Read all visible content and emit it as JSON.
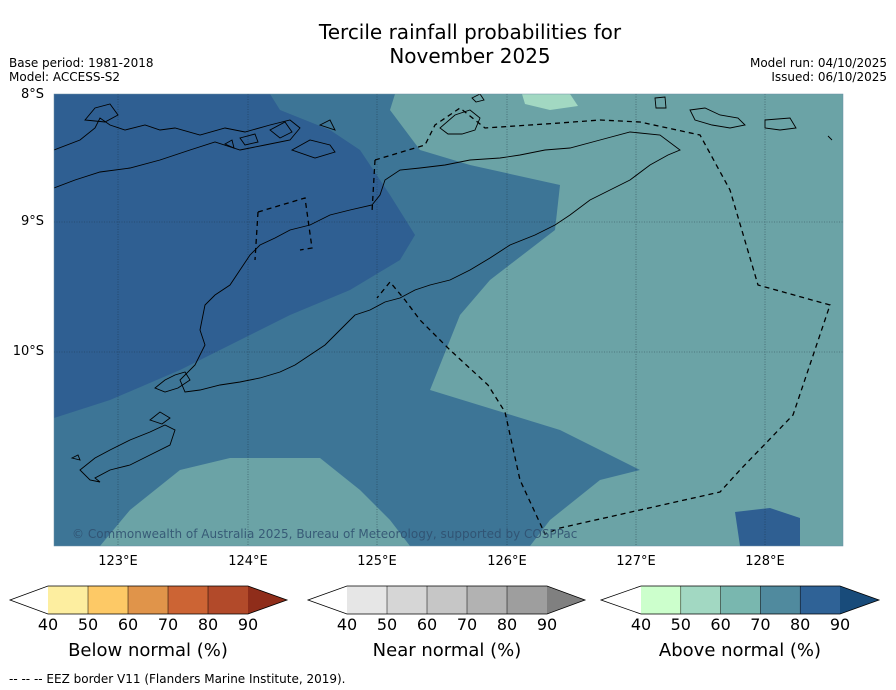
{
  "title_line1": "Tercile rainfall probabilities for",
  "title_line2": "November 2025",
  "meta_left": {
    "base_period": "Base period: 1981-2018",
    "model": "Model: ACCESS-S2"
  },
  "meta_right": {
    "model_run": "Model run: 04/10/2025",
    "issued": "Issued: 06/10/2025"
  },
  "latitudes": [
    "8°S",
    "9°S",
    "10°S"
  ],
  "longitudes": [
    "123°E",
    "124°E",
    "125°E",
    "126°E",
    "127°E",
    "128°E"
  ],
  "credit": "© Commonwealth of Australia 2025, Bureau of Meteorology, supported by COSPPac",
  "colorbars": [
    {
      "label": "Below normal (%)",
      "ticks": [
        "40",
        "50",
        "60",
        "70",
        "80",
        "90"
      ],
      "colors": [
        "#ffffff",
        "#fdeea0",
        "#fdc966",
        "#e0944a",
        "#cc6434",
        "#b24a2a",
        "#8f2d1a"
      ]
    },
    {
      "label": "Near normal (%)",
      "ticks": [
        "40",
        "50",
        "60",
        "70",
        "80",
        "90"
      ],
      "colors": [
        "#ffffff",
        "#e6e6e6",
        "#d6d6d6",
        "#c6c6c6",
        "#b2b2b2",
        "#9e9e9e",
        "#808080"
      ]
    },
    {
      "label": "Above normal (%)",
      "ticks": [
        "40",
        "50",
        "60",
        "70",
        "80",
        "90"
      ],
      "colors": [
        "#ffffff",
        "#ccffcc",
        "#a2d8c2",
        "#79b7af",
        "#508a9e",
        "#2f6296",
        "#184b7a"
      ]
    }
  ],
  "map_colors": {
    "above_70_80": "#3d7596",
    "above_80_90": "#2f5f92",
    "above_60_70": "#6ba3a6",
    "above_50_60": "#a2d8c2"
  },
  "footer": "--  --  -- EEZ border V11 (Flanders Marine Institute, 2019)."
}
